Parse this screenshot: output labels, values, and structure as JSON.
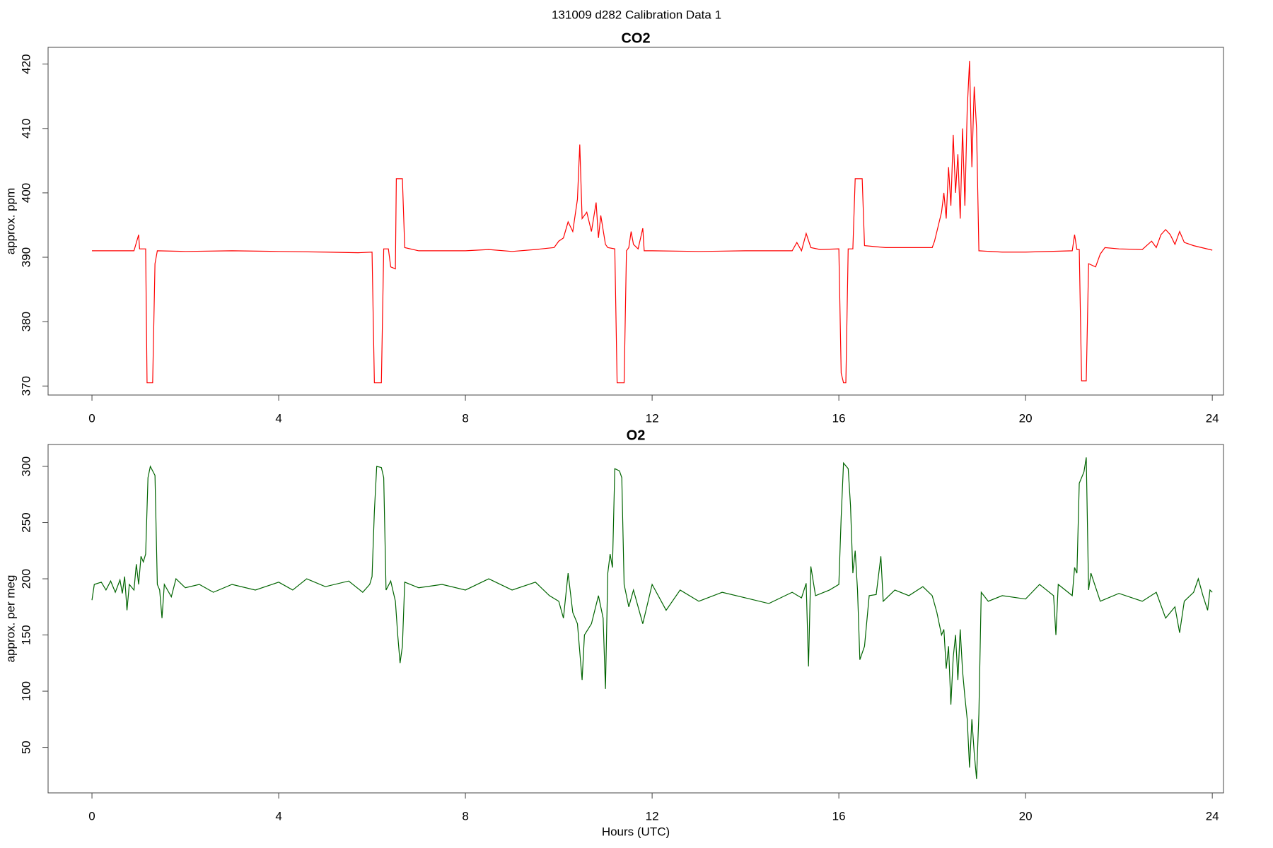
{
  "title": "131009   d282   Calibration Data 1",
  "chart_data": [
    {
      "type": "line",
      "title": "CO2",
      "ylabel": "approx. ppm",
      "color": "#ff0000",
      "xlim": [
        -0.94,
        24.24
      ],
      "ylim": [
        368.6,
        422.6
      ],
      "xticks": [
        0,
        4,
        8,
        12,
        16,
        20,
        24
      ],
      "yticks": [
        370,
        380,
        390,
        400,
        410,
        420
      ],
      "x": [
        0,
        0.9,
        1.0,
        1.02,
        1.15,
        1.18,
        1.3,
        1.35,
        1.4,
        2,
        3,
        4,
        5,
        5.7,
        6.0,
        6.05,
        6.2,
        6.25,
        6.35,
        6.4,
        6.5,
        6.52,
        6.65,
        6.7,
        7,
        8,
        8.5,
        9,
        9.5,
        9.9,
        10.0,
        10.1,
        10.2,
        10.3,
        10.4,
        10.45,
        10.5,
        10.6,
        10.7,
        10.8,
        10.85,
        10.9,
        11.0,
        11.05,
        11.2,
        11.25,
        11.4,
        11.45,
        11.5,
        11.55,
        11.6,
        11.7,
        11.8,
        11.83,
        11.9,
        12,
        13,
        14,
        15,
        15.1,
        15.2,
        15.3,
        15.4,
        15.6,
        16,
        16.05,
        16.1,
        16.15,
        16.2,
        16.3,
        16.35,
        16.5,
        16.55,
        17,
        17.5,
        18,
        18.05,
        18.1,
        18.2,
        18.25,
        18.3,
        18.35,
        18.4,
        18.45,
        18.5,
        18.55,
        18.6,
        18.65,
        18.7,
        18.75,
        18.8,
        18.85,
        18.9,
        18.95,
        19.0,
        19.5,
        20,
        21,
        21.05,
        21.1,
        21.15,
        21.2,
        21.3,
        21.35,
        21.5,
        21.6,
        21.7,
        22,
        22.5,
        22.7,
        22.8,
        22.9,
        23.0,
        23.1,
        23.2,
        23.3,
        23.4,
        23.6,
        24
      ],
      "values": [
        391,
        391,
        393.5,
        391.3,
        391.3,
        370.5,
        370.5,
        389,
        391,
        390.9,
        391,
        390.9,
        390.8,
        390.7,
        390.8,
        370.5,
        370.5,
        391.3,
        391.3,
        388.5,
        388.2,
        402.2,
        402.2,
        391.5,
        391,
        391,
        391.2,
        390.9,
        391.2,
        391.5,
        392.5,
        393,
        395.5,
        394,
        399,
        407.5,
        396,
        397,
        394,
        398.5,
        393,
        396.5,
        392,
        391.5,
        391.3,
        370.5,
        370.5,
        391,
        391.5,
        394,
        392,
        391.3,
        394.5,
        391,
        391,
        391,
        390.9,
        391,
        391,
        392.3,
        391,
        393.7,
        391.5,
        391.2,
        391.3,
        372,
        370.5,
        370.5,
        391.3,
        391.3,
        402.2,
        402.2,
        391.8,
        391.5,
        391.5,
        391.5,
        392.5,
        394,
        397,
        400,
        396,
        404,
        398,
        409,
        400,
        406,
        396,
        410,
        398,
        413,
        420.5,
        404,
        416.5,
        410,
        391,
        390.8,
        390.8,
        391,
        393.5,
        391.2,
        391.2,
        370.8,
        370.8,
        389,
        388.5,
        390.5,
        391.5,
        391.3,
        391.2,
        392.5,
        391.5,
        393.5,
        394.3,
        393.5,
        392,
        394,
        392.3,
        391.8,
        391.1
      ]
    },
    {
      "type": "line",
      "title": "O2",
      "ylabel": "approx. per meg",
      "xlabel": "Hours (UTC)",
      "color": "#006400",
      "xlim": [
        -0.94,
        24.24
      ],
      "ylim": [
        9.5,
        319.5
      ],
      "xticks": [
        0,
        4,
        8,
        12,
        16,
        20,
        24
      ],
      "yticks": [
        50,
        100,
        150,
        200,
        250,
        300
      ],
      "x": [
        0,
        0.05,
        0.2,
        0.3,
        0.4,
        0.5,
        0.6,
        0.65,
        0.7,
        0.75,
        0.8,
        0.9,
        0.95,
        1.0,
        1.05,
        1.1,
        1.15,
        1.2,
        1.25,
        1.3,
        1.35,
        1.4,
        1.45,
        1.5,
        1.55,
        1.7,
        1.8,
        2,
        2.3,
        2.6,
        3,
        3.5,
        4,
        4.3,
        4.6,
        5,
        5.5,
        5.8,
        5.95,
        6.0,
        6.05,
        6.1,
        6.2,
        6.25,
        6.3,
        6.4,
        6.5,
        6.55,
        6.6,
        6.65,
        6.7,
        7,
        7.5,
        8,
        8.5,
        9,
        9.5,
        9.8,
        10,
        10.1,
        10.2,
        10.3,
        10.4,
        10.5,
        10.55,
        10.7,
        10.85,
        10.95,
        11.0,
        11.05,
        11.1,
        11.15,
        11.2,
        11.3,
        11.35,
        11.4,
        11.5,
        11.6,
        11.8,
        12,
        12.3,
        12.6,
        13,
        13.5,
        14,
        14.5,
        15,
        15.2,
        15.3,
        15.35,
        15.4,
        15.5,
        15.8,
        16.0,
        16.05,
        16.1,
        16.2,
        16.25,
        16.3,
        16.35,
        16.4,
        16.45,
        16.55,
        16.65,
        16.8,
        16.9,
        16.95,
        17.2,
        17.5,
        17.8,
        18,
        18.1,
        18.2,
        18.25,
        18.3,
        18.35,
        18.4,
        18.45,
        18.5,
        18.55,
        18.6,
        18.65,
        18.7,
        18.75,
        18.8,
        18.85,
        18.9,
        18.95,
        19.0,
        19.05,
        19.2,
        19.5,
        20,
        20.3,
        20.6,
        20.65,
        20.7,
        21.0,
        21.05,
        21.1,
        21.15,
        21.25,
        21.3,
        21.35,
        21.4,
        21.6,
        22,
        22.5,
        22.8,
        23.0,
        23.2,
        23.3,
        23.4,
        23.6,
        23.7,
        23.8,
        23.9,
        23.95,
        24
      ],
      "values": [
        181,
        195,
        197,
        190,
        198,
        188,
        199,
        187,
        202,
        172,
        195,
        190,
        213,
        195,
        220,
        215,
        222,
        290,
        300,
        296,
        292,
        195,
        190,
        165,
        195,
        184,
        200,
        192,
        195,
        188,
        195,
        190,
        197,
        190,
        200,
        193,
        198,
        188,
        195,
        202,
        260,
        300,
        299,
        290,
        190,
        198,
        180,
        150,
        125,
        140,
        197,
        192,
        195,
        190,
        200,
        190,
        197,
        185,
        180,
        165,
        205,
        170,
        160,
        110,
        150,
        160,
        185,
        165,
        102,
        205,
        222,
        210,
        298,
        296,
        290,
        195,
        175,
        190,
        160,
        195,
        172,
        190,
        180,
        188,
        183,
        178,
        188,
        183,
        196,
        122,
        211,
        185,
        190,
        195,
        255,
        303,
        298,
        265,
        205,
        225,
        190,
        128,
        140,
        185,
        186,
        220,
        180,
        190,
        185,
        193,
        185,
        170,
        150,
        155,
        120,
        140,
        88,
        130,
        150,
        110,
        155,
        118,
        95,
        75,
        32,
        75,
        45,
        22,
        80,
        188,
        180,
        185,
        182,
        195,
        185,
        150,
        195,
        185,
        210,
        205,
        285,
        295,
        308,
        190,
        205,
        180,
        187,
        180,
        188,
        165,
        175,
        152,
        180,
        188,
        200,
        185,
        172,
        190,
        188
      ]
    }
  ]
}
